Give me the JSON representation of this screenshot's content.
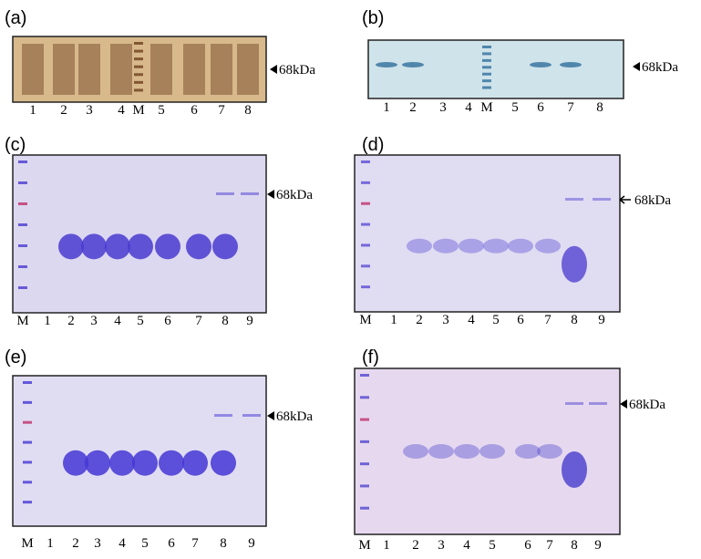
{
  "panels": [
    {
      "label": "(a)",
      "marker_label": "68kDa",
      "lanes": [
        "1",
        "2",
        "3",
        "4",
        "M",
        "5",
        "6",
        "7",
        "8"
      ]
    },
    {
      "label": "(b)",
      "marker_label": "68kDa",
      "lanes": [
        "1",
        "2",
        "3",
        "4",
        "M",
        "5",
        "6",
        "7",
        "8"
      ]
    },
    {
      "label": "(c)",
      "marker_label": "68kDa",
      "lanes": [
        "M",
        "1",
        "2",
        "3",
        "4",
        "5",
        "6",
        "7",
        "8",
        "9"
      ]
    },
    {
      "label": "(d)",
      "marker_label": "68kDa",
      "lanes": [
        "M",
        "1",
        "2",
        "3",
        "4",
        "5",
        "6",
        "7",
        "8",
        "9"
      ]
    },
    {
      "label": "(e)",
      "marker_label": "68kDa",
      "lanes": [
        "M",
        "1",
        "2",
        "3",
        "4",
        "5",
        "6",
        "7",
        "8",
        "9"
      ]
    },
    {
      "label": "(f)",
      "marker_label": "68kDa",
      "lanes": [
        "M",
        "1",
        "2",
        "3",
        "4",
        "5",
        "6",
        "7",
        "8",
        "9"
      ]
    }
  ]
}
